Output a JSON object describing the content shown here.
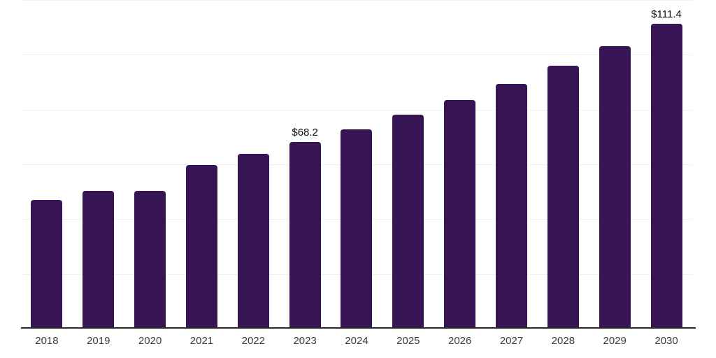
{
  "chart_data": {
    "type": "bar",
    "title": "",
    "xlabel": "",
    "ylabel": "",
    "categories": [
      "2018",
      "2019",
      "2020",
      "2021",
      "2022",
      "2023",
      "2024",
      "2025",
      "2026",
      "2027",
      "2028",
      "2029",
      "2030"
    ],
    "values": [
      47.0,
      50.3,
      50.3,
      59.7,
      63.8,
      68.2,
      72.8,
      78.1,
      83.4,
      89.4,
      95.9,
      103.1,
      111.4
    ],
    "data_labels": [
      "",
      "",
      "",
      "",
      "",
      "$68.2",
      "",
      "",
      "",
      "",
      "",
      "",
      "$111.4"
    ],
    "ylim": [
      0,
      120
    ],
    "gridline_values": [
      20,
      40,
      60,
      80,
      100,
      120
    ],
    "grid": true,
    "legend": false,
    "colors": {
      "bar": "#371454",
      "gridline": "#f1f1f4",
      "axis_line": "#2a2a2a",
      "tick_label": "#3b3b3b",
      "data_label": "#0b0b0b",
      "background": "#ffffff"
    }
  }
}
